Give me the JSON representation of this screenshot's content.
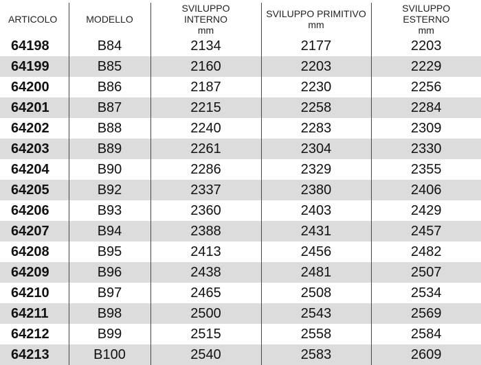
{
  "table": {
    "headers": [
      "ARTICOLO",
      "MODELLO",
      "SVILUPPO INTERNO mm",
      "SVILUPPO PRIMITIVO mm",
      "SVILUPPO ESTERNO mm"
    ],
    "rows": [
      [
        "64198",
        "B84",
        "2134",
        "2177",
        "2203"
      ],
      [
        "64199",
        "B85",
        "2160",
        "2203",
        "2229"
      ],
      [
        "64200",
        "B86",
        "2187",
        "2230",
        "2256"
      ],
      [
        "64201",
        "B87",
        "2215",
        "2258",
        "2284"
      ],
      [
        "64202",
        "B88",
        "2240",
        "2283",
        "2309"
      ],
      [
        "64203",
        "B89",
        "2261",
        "2304",
        "2330"
      ],
      [
        "64204",
        "B90",
        "2286",
        "2329",
        "2355"
      ],
      [
        "64205",
        "B92",
        "2337",
        "2380",
        "2406"
      ],
      [
        "64206",
        "B93",
        "2360",
        "2403",
        "2429"
      ],
      [
        "64207",
        "B94",
        "2388",
        "2431",
        "2457"
      ],
      [
        "64208",
        "B95",
        "2413",
        "2456",
        "2482"
      ],
      [
        "64209",
        "B96",
        "2438",
        "2481",
        "2507"
      ],
      [
        "64210",
        "B97",
        "2465",
        "2508",
        "2534"
      ],
      [
        "64211",
        "B98",
        "2500",
        "2543",
        "2569"
      ],
      [
        "64212",
        "B99",
        "2515",
        "2558",
        "2584"
      ],
      [
        "64213",
        "B100",
        "2540",
        "2583",
        "2609"
      ]
    ],
    "stripe_color": "#dcdcdc"
  }
}
